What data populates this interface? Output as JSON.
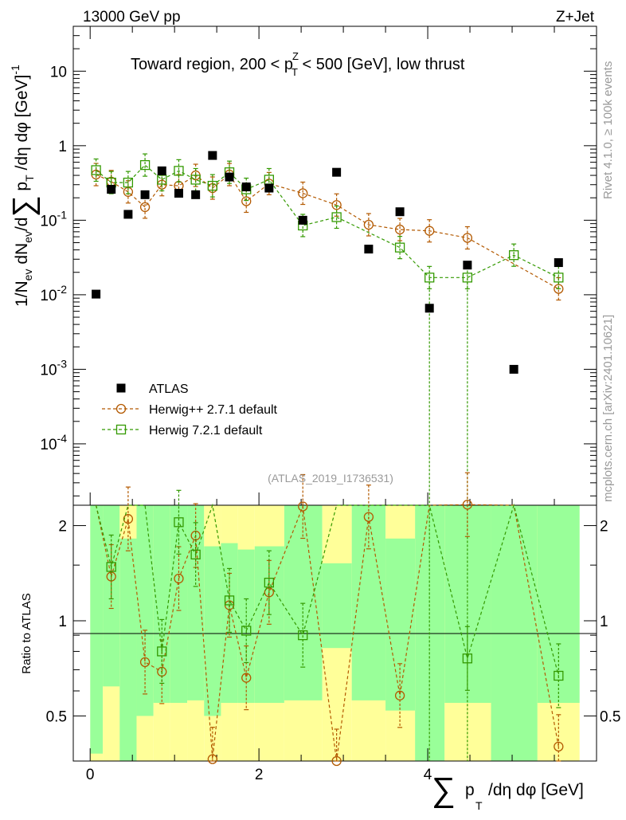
{
  "header": {
    "left_label": "13000 GeV pp",
    "right_label": "Z+Jet"
  },
  "side_labels": {
    "rivet": "Rivet 4.1.0, ≥ 100k events",
    "mcplots": "mcplots.cern.ch [arXiv:2401.10621]"
  },
  "chart_data": {
    "type": "scatter",
    "title": "Toward region, 200 < p_T^Z < 500 [GeV], low thrust",
    "title_parts": {
      "pre": "Toward region, 200 < p",
      "sub": "T",
      "sup": "Z",
      "post": " < 500 [GeV], low thrust"
    },
    "analysis_id": "(ATLAS_2019_I1736531)",
    "main_ylabel": "1/N_ev dN_ev/d∑ p_T /dη dφ  [GeV]^-1",
    "ratio_ylabel": "Ratio to ATLAS",
    "xlabel": "∑ p_T /dη dφ [GeV]",
    "xlim": [
      -0.2,
      6.0
    ],
    "ylim_main": [
      1.5e-05,
      40
    ],
    "ylim_ratio": [
      0.36,
      2.32
    ],
    "yscale_main": "log",
    "x_ticks": [
      "0",
      "2",
      "4"
    ],
    "y_ticks_main": [
      "10",
      "1",
      "10^-1",
      "10^-2",
      "10^-3",
      "10^-4"
    ],
    "y_ticks_ratio": [
      "2",
      "1",
      "0.5"
    ],
    "legend": {
      "position": "lower-left",
      "entries": [
        "ATLAS",
        "Herwig++ 2.7.1 default",
        "Herwig 7.2.1 default"
      ]
    },
    "bins": [
      [
        0.0,
        0.15
      ],
      [
        0.15,
        0.35
      ],
      [
        0.35,
        0.55
      ],
      [
        0.55,
        0.75
      ],
      [
        0.75,
        0.95
      ],
      [
        0.95,
        1.15
      ],
      [
        1.15,
        1.35
      ],
      [
        1.35,
        1.55
      ],
      [
        1.55,
        1.75
      ],
      [
        1.75,
        1.95
      ],
      [
        1.95,
        2.3
      ],
      [
        2.3,
        2.75
      ],
      [
        2.75,
        3.1
      ],
      [
        3.1,
        3.5
      ],
      [
        3.5,
        3.85
      ],
      [
        3.85,
        4.2
      ],
      [
        4.2,
        4.75
      ],
      [
        4.75,
        5.3
      ],
      [
        5.3,
        5.8
      ]
    ],
    "series": [
      {
        "name": "ATLAS",
        "color": "#000000",
        "marker": "filled-square",
        "x": [
          0.07,
          0.25,
          0.45,
          0.65,
          0.85,
          1.05,
          1.25,
          1.45,
          1.65,
          1.85,
          2.12,
          2.52,
          2.92,
          3.3,
          3.67,
          4.02,
          4.47,
          5.02,
          5.55
        ],
        "values": [
          0.0102,
          0.26,
          0.12,
          0.22,
          0.46,
          0.23,
          0.22,
          0.74,
          0.38,
          0.28,
          0.27,
          0.1,
          0.44,
          0.041,
          0.13,
          0.0066,
          0.025,
          0.001,
          0.027
        ],
        "band_lo": [
          0.38,
          0.62,
          0.35,
          0.5,
          0.55,
          0.55,
          0.56,
          0.5,
          0.55,
          0.55,
          0.55,
          0.56,
          0.82,
          0.56,
          0.52,
          0.36,
          0.55,
          0.36,
          0.55
        ],
        "band_hi": [
          2.32,
          2.32,
          1.82,
          2.32,
          2.32,
          2.32,
          2.32,
          1.72,
          1.76,
          1.68,
          1.72,
          2.32,
          1.52,
          2.32,
          1.82,
          2.32,
          2.32,
          2.32,
          2.32
        ]
      },
      {
        "name": "Herwig++ 2.7.1 default",
        "color": "#b35900",
        "marker": "open-circle",
        "x": [
          0.07,
          0.25,
          0.45,
          0.65,
          0.85,
          1.05,
          1.25,
          1.45,
          1.65,
          1.85,
          2.12,
          2.52,
          2.92,
          3.3,
          3.67,
          4.02,
          4.47,
          5.02,
          5.55
        ],
        "values": [
          0.41,
          0.33,
          0.24,
          0.15,
          0.3,
          0.29,
          0.4,
          0.27,
          0.41,
          0.18,
          0.31,
          0.23,
          0.16,
          0.087,
          0.075,
          0.072,
          0.058,
          null,
          0.012
        ],
        "ratio": [
          null,
          1.38,
          2.1,
          0.74,
          0.69,
          1.36,
          1.86,
          0.365,
          1.12,
          0.66,
          1.23,
          2.3,
          0.36,
          2.13,
          0.58,
          null,
          2.33,
          null,
          0.4
        ]
      },
      {
        "name": "Herwig 7.2.1 default",
        "color": "#339900",
        "marker": "open-square",
        "x": [
          0.07,
          0.25,
          0.45,
          0.65,
          0.85,
          1.05,
          1.25,
          1.45,
          1.65,
          1.85,
          2.12,
          2.52,
          2.92,
          3.3,
          3.67,
          4.02,
          4.47,
          5.02,
          5.55
        ],
        "values": [
          0.47,
          0.32,
          0.32,
          0.55,
          0.35,
          0.46,
          0.35,
          0.29,
          0.44,
          0.26,
          0.35,
          0.085,
          0.11,
          null,
          0.043,
          0.017,
          0.017,
          0.034,
          0.017
        ],
        "ratio": [
          null,
          1.48,
          null,
          null,
          0.8,
          2.05,
          1.62,
          null,
          1.16,
          0.93,
          1.32,
          0.9,
          null,
          null,
          null,
          null,
          0.76,
          null,
          0.67
        ]
      }
    ]
  }
}
